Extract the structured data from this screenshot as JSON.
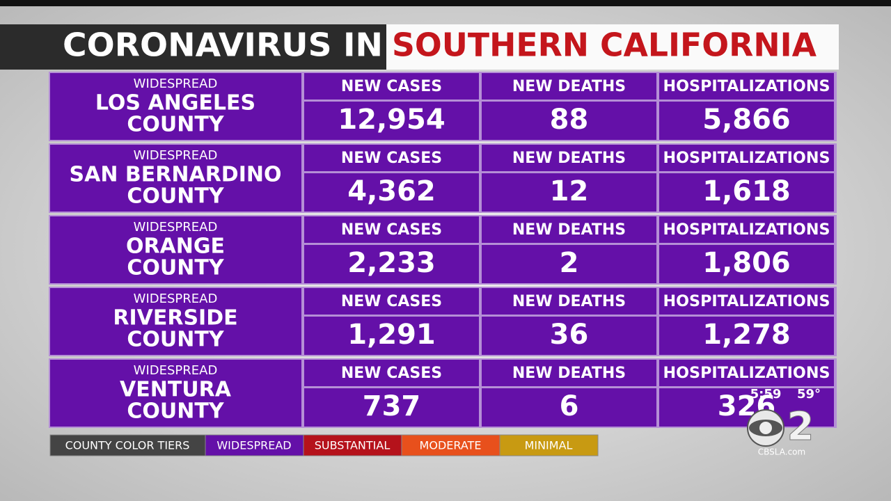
{
  "header": {
    "title_left": "CORONAVIRUS IN",
    "title_right": "SOUTHERN CALIFORNIA"
  },
  "table": {
    "rows": [
      {
        "tier": "WIDESPREAD",
        "county": [
          "LOS ANGELES",
          "COUNTY"
        ],
        "labels": [
          "NEW CASES",
          "NEW DEATHS",
          "HOSPITALIZATIONS"
        ],
        "values": [
          "12,954",
          "88",
          "5,866"
        ]
      },
      {
        "tier": "WIDESPREAD",
        "county": [
          "SAN BERNARDINO",
          "COUNTY"
        ],
        "labels": [
          "NEW CASES",
          "NEW DEATHS",
          "HOSPITALIZATIONS"
        ],
        "values": [
          "4,362",
          "12",
          "1,618"
        ]
      },
      {
        "tier": "WIDESPREAD",
        "county": [
          "ORANGE",
          "COUNTY"
        ],
        "labels": [
          "NEW CASES",
          "NEW DEATHS",
          "HOSPITALIZATIONS"
        ],
        "values": [
          "2,233",
          "2",
          "1,806"
        ]
      },
      {
        "tier": "WIDESPREAD",
        "county": [
          "RIVERSIDE",
          "COUNTY"
        ],
        "labels": [
          "NEW CASES",
          "NEW DEATHS",
          "HOSPITALIZATIONS"
        ],
        "values": [
          "1,291",
          "36",
          "1,278"
        ]
      },
      {
        "tier": "WIDESPREAD",
        "county": [
          "VENTURA",
          "COUNTY"
        ],
        "labels": [
          "NEW CASES",
          "NEW DEATHS",
          "HOSPITALIZATIONS"
        ],
        "values": [
          "737",
          "6",
          "326"
        ]
      }
    ]
  },
  "legend": {
    "title": "COUNTY COLOR TIERS",
    "tiers": [
      "WIDESPREAD",
      "SUBSTANTIAL",
      "MODERATE",
      "MINIMAL"
    ]
  },
  "bug": {
    "time": "5:59",
    "temperature": "59°",
    "channel": "2",
    "site": "CBSLA.com"
  }
}
